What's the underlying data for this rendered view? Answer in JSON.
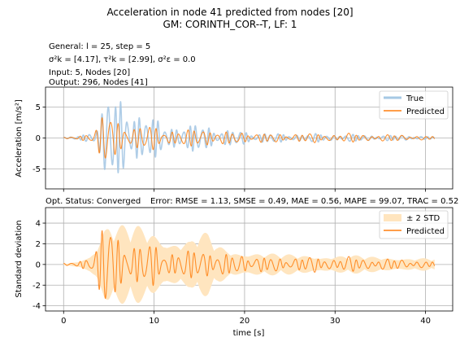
{
  "figure": {
    "title_line1": "Acceleration in node 41 predicted from nodes [20]",
    "title_line2": "GM: CORINTH_COR--T, LF: 1",
    "info_general": "General: l = 25, step = 5",
    "info_sigma": "σ²k = [4.17], τ²k = [2.99], σ²ε = 0.0",
    "info_input": "Input: 5, Nodes [20]",
    "info_output": "Output: 296, Nodes [41]",
    "status_text": "Opt. Status: Converged",
    "error_text": "Error: RMSE = 1.13, SMSE = 0.49, MAE = 0.56, MAPE = 99.07, TRAC = 0.52"
  },
  "chart_data": [
    {
      "type": "line",
      "title": "",
      "xlabel": "",
      "ylabel": "Acceleration [m/s²]",
      "xlim": [
        -2,
        43
      ],
      "ylim": [
        -8.2,
        8.2
      ],
      "xticks": [
        0,
        10,
        20,
        30,
        40
      ],
      "yticks": [
        -5,
        0,
        5
      ],
      "grid": true,
      "legend": "top-right",
      "series": [
        {
          "name": "True",
          "color": "#a6c8e4",
          "envelope_t": [
            0.5,
            1.5,
            2.5,
            3.0,
            3.5,
            4.0,
            4.5,
            5.0,
            5.5,
            6.0,
            6.5,
            7.0,
            7.5,
            8.0,
            8.5,
            9.0,
            9.5,
            10.0,
            11.0,
            12.0,
            13.0,
            14.0,
            15.0,
            16.0,
            17.0,
            18.0,
            20.0,
            22.0,
            24.0,
            26.0,
            28.0,
            30.0,
            32.0,
            34.0,
            36.0,
            38.0,
            41.0
          ],
          "envelope_amp": [
            0.1,
            0.3,
            0.8,
            1.5,
            2.5,
            4.0,
            6.0,
            7.5,
            7.0,
            6.5,
            7.0,
            7.5,
            7.0,
            5.5,
            4.5,
            4.0,
            3.5,
            3.2,
            2.8,
            2.5,
            2.3,
            2.0,
            2.6,
            2.5,
            1.6,
            1.3,
            1.2,
            0.9,
            0.7,
            0.7,
            0.7,
            0.6,
            0.6,
            0.5,
            0.5,
            0.4,
            0.3
          ]
        },
        {
          "name": "Predicted",
          "color": "#ff7f0e",
          "envelope_t": [
            0.5,
            1.5,
            2.5,
            3.0,
            3.5,
            4.0,
            4.5,
            5.0,
            5.5,
            6.0,
            6.5,
            7.0,
            7.5,
            8.0,
            8.5,
            9.0,
            9.5,
            10.0,
            11.0,
            12.0,
            13.0,
            14.0,
            15.0,
            16.0,
            17.0,
            18.0,
            20.0,
            22.0,
            24.0,
            26.0,
            28.0,
            30.0,
            32.0,
            34.0,
            36.0,
            38.0,
            41.0
          ],
          "envelope_amp": [
            0.1,
            0.3,
            0.8,
            1.5,
            2.0,
            3.0,
            4.2,
            4.5,
            3.8,
            3.0,
            2.8,
            3.5,
            2.2,
            2.0,
            2.2,
            2.0,
            2.1,
            2.0,
            1.6,
            1.5,
            1.4,
            1.3,
            2.0,
            1.8,
            1.2,
            1.0,
            1.1,
            0.8,
            0.7,
            0.8,
            0.8,
            0.7,
            0.8,
            0.6,
            0.6,
            0.5,
            0.3
          ]
        }
      ]
    },
    {
      "type": "area",
      "title": "",
      "xlabel": "time [s]",
      "ylabel": "Standard deviation",
      "xlim": [
        -2,
        43
      ],
      "ylim": [
        -4.5,
        5.5
      ],
      "xticks": [
        0,
        10,
        20,
        30,
        40
      ],
      "yticks": [
        -4,
        -2,
        0,
        2,
        4
      ],
      "grid": true,
      "legend": "top-right",
      "series": [
        {
          "name": "± 2 STD",
          "color": "#ffe5bf",
          "envelope_t": [
            0.5,
            1.5,
            2.5,
            3.5,
            4.0,
            4.5,
            5.0,
            5.5,
            6.0,
            7.0,
            8.0,
            9.0,
            10.0,
            11.0,
            12.0,
            13.0,
            14.0,
            15.0,
            16.0,
            17.0,
            18.0,
            20.0,
            22.0,
            24.0,
            26.0,
            28.0,
            30.0,
            32.0,
            34.0,
            36.0,
            38.0,
            41.0
          ],
          "envelope_amp": [
            0.1,
            0.3,
            0.8,
            1.8,
            3.0,
            4.0,
            4.2,
            4.0,
            3.9,
            3.8,
            3.9,
            3.8,
            3.6,
            3.0,
            2.7,
            2.5,
            2.4,
            3.2,
            3.0,
            2.0,
            1.6,
            1.4,
            1.2,
            1.0,
            1.0,
            1.0,
            0.9,
            0.9,
            0.8,
            0.8,
            0.7,
            0.6
          ]
        },
        {
          "name": "Predicted",
          "color": "#ff7f0e",
          "envelope_t": [
            0.5,
            1.5,
            2.5,
            3.5,
            4.0,
            4.5,
            5.0,
            5.5,
            6.0,
            7.0,
            8.0,
            9.0,
            10.0,
            11.0,
            12.0,
            13.0,
            14.0,
            15.0,
            16.0,
            17.0,
            18.0,
            20.0,
            22.0,
            24.0,
            26.0,
            28.0,
            30.0,
            32.0,
            34.0,
            36.0,
            38.0,
            41.0
          ],
          "envelope_amp": [
            0.1,
            0.3,
            0.8,
            2.0,
            3.0,
            4.2,
            4.8,
            3.8,
            3.0,
            3.0,
            2.2,
            2.0,
            2.2,
            1.6,
            1.5,
            1.4,
            1.3,
            2.0,
            1.8,
            1.2,
            1.0,
            1.1,
            0.8,
            0.7,
            0.8,
            0.8,
            0.7,
            0.8,
            0.6,
            0.6,
            0.5,
            0.3
          ]
        }
      ]
    }
  ]
}
